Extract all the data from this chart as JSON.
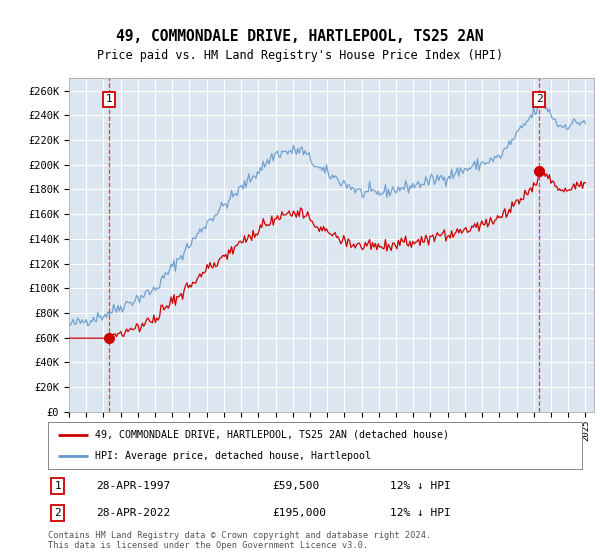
{
  "title": "49, COMMONDALE DRIVE, HARTLEPOOL, TS25 2AN",
  "subtitle": "Price paid vs. HM Land Registry's House Price Index (HPI)",
  "ylim": [
    0,
    270000
  ],
  "xlim_start": 1995.0,
  "xlim_end": 2025.5,
  "plot_bg_color": "#dce6f1",
  "grid_color": "#b8cce4",
  "sale1_x": 1997.32,
  "sale1_y": 59500,
  "sale2_x": 2022.32,
  "sale2_y": 195000,
  "sale1_date": "28-APR-1997",
  "sale1_price": "£59,500",
  "sale1_hpi": "12% ↓ HPI",
  "sale2_date": "28-APR-2022",
  "sale2_price": "£195,000",
  "sale2_hpi": "12% ↓ HPI",
  "legend_line1": "49, COMMONDALE DRIVE, HARTLEPOOL, TS25 2AN (detached house)",
  "legend_line2": "HPI: Average price, detached house, Hartlepool",
  "footer": "Contains HM Land Registry data © Crown copyright and database right 2024.\nThis data is licensed under the Open Government Licence v3.0.",
  "red_line_color": "#cc0000",
  "blue_line_color": "#6699cc",
  "marker_color": "#cc0000",
  "dashed_line_color": "#cc0000"
}
